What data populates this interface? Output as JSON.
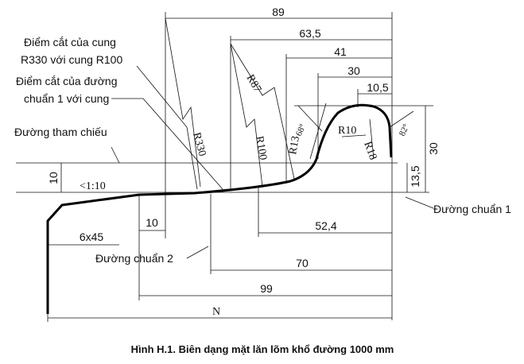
{
  "dimensions": [
    "89",
    "63,5",
    "41",
    "30",
    "10,5",
    "30",
    "13,5",
    "10",
    "10",
    "6x45",
    "52,4",
    "70",
    "99",
    "N"
  ],
  "radii": [
    "R87",
    "R330",
    "R100",
    "R13",
    "R10",
    "R18"
  ],
  "angles": [
    "68°",
    "82°"
  ],
  "taper": "<1:10",
  "annotations": [
    "Điểm cắt của cung",
    "R330 với cung R100",
    "Điểm cắt của đường",
    "chuẩn 1 với cung",
    "Đường tham chiếu",
    "Đường chuẩn 1",
    "Đường chuẩn 2"
  ],
  "caption": "Hình H.1. Biên dạng mặt lăn lõm khổ đường 1000 mm"
}
